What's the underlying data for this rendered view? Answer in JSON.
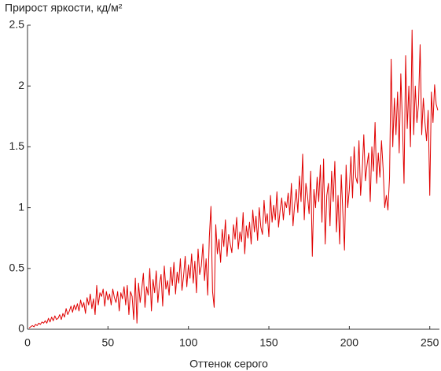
{
  "chart_data": {
    "type": "line",
    "title": "Прирост яркости, кд/м²",
    "x_label": "Оттенок серого",
    "xlim": [
      0,
      256
    ],
    "xticks": [
      0,
      50,
      100,
      150,
      200,
      250
    ],
    "ylim": [
      0,
      2.5
    ],
    "yticks": [
      0,
      0.5,
      1,
      1.5,
      2,
      2.5
    ],
    "grid": false,
    "x": [
      1,
      2,
      3,
      4,
      5,
      6,
      7,
      8,
      9,
      10,
      11,
      12,
      13,
      14,
      15,
      16,
      17,
      18,
      19,
      20,
      21,
      22,
      23,
      24,
      25,
      26,
      27,
      28,
      29,
      30,
      31,
      32,
      33,
      34,
      35,
      36,
      37,
      38,
      39,
      40,
      41,
      42,
      43,
      44,
      45,
      46,
      47,
      48,
      49,
      50,
      51,
      52,
      53,
      54,
      55,
      56,
      57,
      58,
      59,
      60,
      61,
      62,
      63,
      64,
      65,
      66,
      67,
      68,
      69,
      70,
      71,
      72,
      73,
      74,
      75,
      76,
      77,
      78,
      79,
      80,
      81,
      82,
      83,
      84,
      85,
      86,
      87,
      88,
      89,
      90,
      91,
      92,
      93,
      94,
      95,
      96,
      97,
      98,
      99,
      100,
      101,
      102,
      103,
      104,
      105,
      106,
      107,
      108,
      109,
      110,
      111,
      112,
      113,
      114,
      115,
      116,
      117,
      118,
      119,
      120,
      121,
      122,
      123,
      124,
      125,
      126,
      127,
      128,
      129,
      130,
      131,
      132,
      133,
      134,
      135,
      136,
      137,
      138,
      139,
      140,
      141,
      142,
      143,
      144,
      145,
      146,
      147,
      148,
      149,
      150,
      151,
      152,
      153,
      154,
      155,
      156,
      157,
      158,
      159,
      160,
      161,
      162,
      163,
      164,
      165,
      166,
      167,
      168,
      169,
      170,
      171,
      172,
      173,
      174,
      175,
      176,
      177,
      178,
      179,
      180,
      181,
      182,
      183,
      184,
      185,
      186,
      187,
      188,
      189,
      190,
      191,
      192,
      193,
      194,
      195,
      196,
      197,
      198,
      199,
      200,
      201,
      202,
      203,
      204,
      205,
      206,
      207,
      208,
      209,
      210,
      211,
      212,
      213,
      214,
      215,
      216,
      217,
      218,
      219,
      220,
      221,
      222,
      223,
      224,
      225,
      226,
      227,
      228,
      229,
      230,
      231,
      232,
      233,
      234,
      235,
      236,
      237,
      238,
      239,
      240,
      241,
      242,
      243,
      244,
      245,
      246,
      247,
      248,
      249,
      250,
      251,
      252,
      253,
      254,
      255
    ],
    "series": [
      {
        "color": "#e00000",
        "values": [
          0.01,
          0.02,
          0.03,
          0.02,
          0.04,
          0.03,
          0.05,
          0.04,
          0.06,
          0.05,
          0.07,
          0.05,
          0.09,
          0.06,
          0.1,
          0.07,
          0.11,
          0.08,
          0.09,
          0.12,
          0.08,
          0.13,
          0.1,
          0.17,
          0.12,
          0.15,
          0.19,
          0.14,
          0.2,
          0.16,
          0.21,
          0.15,
          0.24,
          0.18,
          0.22,
          0.13,
          0.26,
          0.2,
          0.29,
          0.17,
          0.25,
          0.12,
          0.36,
          0.2,
          0.3,
          0.27,
          0.33,
          0.19,
          0.31,
          0.24,
          0.29,
          0.2,
          0.33,
          0.26,
          0.22,
          0.31,
          0.15,
          0.3,
          0.25,
          0.35,
          0.2,
          0.36,
          0.12,
          0.31,
          0.27,
          0.08,
          0.42,
          0.05,
          0.38,
          0.22,
          0.33,
          0.46,
          0.18,
          0.35,
          0.28,
          0.5,
          0.15,
          0.41,
          0.3,
          0.48,
          0.22,
          0.37,
          0.45,
          0.19,
          0.52,
          0.33,
          0.4,
          0.28,
          0.51,
          0.36,
          0.55,
          0.29,
          0.47,
          0.38,
          0.58,
          0.32,
          0.44,
          0.6,
          0.35,
          0.53,
          0.42,
          0.62,
          0.38,
          0.56,
          0.3,
          0.66,
          0.45,
          0.52,
          0.7,
          0.4,
          0.58,
          0.28,
          0.76,
          1.01,
          0.31,
          0.18,
          0.86,
          0.62,
          0.74,
          0.55,
          0.82,
          0.68,
          0.9,
          0.6,
          0.78,
          0.7,
          0.63,
          0.86,
          0.74,
          0.92,
          0.66,
          0.8,
          0.72,
          0.96,
          0.62,
          0.85,
          0.75,
          0.88,
          0.7,
          0.98,
          0.8,
          0.93,
          0.73,
          1.0,
          0.84,
          0.78,
          1.06,
          0.87,
          0.95,
          0.76,
          1.1,
          0.88,
          1.02,
          0.9,
          1.13,
          0.84,
          0.98,
          1.08,
          0.9,
          1.05,
          1.0,
          1.12,
          0.94,
          1.2,
          0.85,
          1.02,
          1.15,
          0.96,
          1.26,
          1.05,
          1.44,
          0.9,
          1.2,
          1.1,
          0.95,
          1.3,
          0.6,
          1.15,
          1.0,
          1.25,
          1.05,
          1.35,
          0.88,
          1.4,
          0.7,
          1.1,
          1.2,
          0.85,
          1.3,
          1.05,
          1.38,
          0.8,
          1.1,
          0.7,
          1.27,
          0.95,
          0.65,
          1.35,
          1.0,
          1.15,
          1.42,
          1.08,
          1.5,
          1.25,
          1.2,
          1.55,
          1.1,
          1.3,
          1.6,
          1.22,
          1.35,
          1.45,
          1.05,
          1.5,
          1.3,
          1.7,
          1.2,
          1.45,
          1.25,
          1.55,
          1.32,
          1.0,
          1.1,
          0.98,
          1.25,
          2.22,
          1.5,
          1.9,
          1.6,
          1.95,
          1.45,
          2.1,
          1.7,
          1.2,
          2.25,
          1.65,
          2.0,
          1.5,
          2.46,
          1.6,
          2.0,
          1.7,
          1.85,
          2.34,
          1.6,
          1.9,
          1.7,
          1.55,
          1.8,
          1.1,
          1.95,
          1.7,
          2.01,
          1.85,
          1.8
        ]
      }
    ]
  }
}
